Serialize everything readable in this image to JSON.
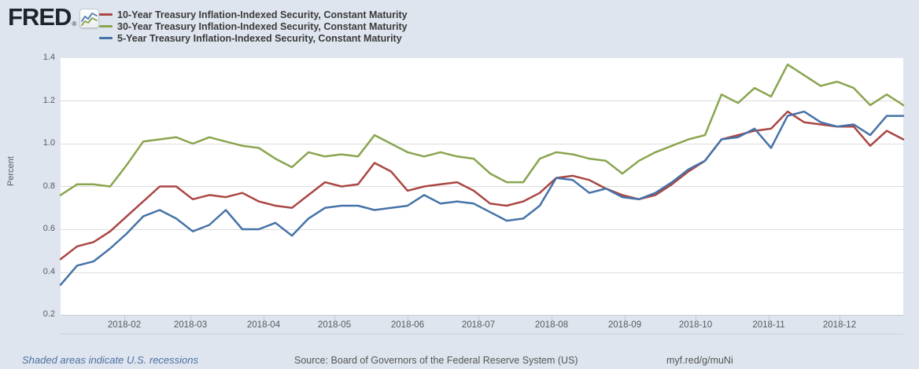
{
  "header": {
    "logo_text": "FRED",
    "logo_registered": "®",
    "logo_icon": "line-chart-icon"
  },
  "legend": {
    "position": "top",
    "series": [
      {
        "label": "10-Year Treasury Inflation-Indexed Security, Constant Maturity",
        "color": "#aa4643"
      },
      {
        "label": "30-Year Treasury Inflation-Indexed Security, Constant Maturity",
        "color": "#89a54e"
      },
      {
        "label": "5-Year Treasury Inflation-Indexed Security, Constant Maturity",
        "color": "#4572a7"
      }
    ]
  },
  "chart_data": {
    "type": "line",
    "title": "",
    "xlabel": "",
    "ylabel": "Percent",
    "ylim": [
      0.2,
      1.4
    ],
    "y_ticks": [
      0.2,
      0.4,
      0.6,
      0.8,
      1.0,
      1.2,
      1.4
    ],
    "grid": "horizontal",
    "x_range": [
      "2018-01-05",
      "2018-12-28"
    ],
    "x_frequency": "weekly",
    "x_ticks": [
      {
        "label": "2018-02",
        "week_offset": 3.857
      },
      {
        "label": "2018-03",
        "week_offset": 7.857
      },
      {
        "label": "2018-04",
        "week_offset": 12.286
      },
      {
        "label": "2018-05",
        "week_offset": 16.571
      },
      {
        "label": "2018-06",
        "week_offset": 21.0
      },
      {
        "label": "2018-07",
        "week_offset": 25.286
      },
      {
        "label": "2018-08",
        "week_offset": 29.714
      },
      {
        "label": "2018-09",
        "week_offset": 34.143
      },
      {
        "label": "2018-10",
        "week_offset": 38.429
      },
      {
        "label": "2018-11",
        "week_offset": 42.857
      },
      {
        "label": "2018-12",
        "week_offset": 47.143
      }
    ],
    "series": [
      {
        "name": "10-Year Treasury Inflation-Indexed Security, Constant Maturity",
        "color": "#aa4643",
        "values": [
          0.46,
          0.52,
          0.54,
          0.59,
          0.66,
          0.73,
          0.8,
          0.8,
          0.74,
          0.76,
          0.75,
          0.77,
          0.73,
          0.71,
          0.7,
          0.76,
          0.82,
          0.8,
          0.81,
          0.91,
          0.87,
          0.78,
          0.8,
          0.81,
          0.82,
          0.78,
          0.72,
          0.71,
          0.73,
          0.77,
          0.84,
          0.85,
          0.83,
          0.79,
          0.76,
          0.74,
          0.76,
          0.81,
          0.87,
          0.92,
          1.02,
          1.04,
          1.06,
          1.07,
          1.15,
          1.1,
          1.09,
          1.08,
          1.08,
          0.99,
          1.06,
          1.02
        ]
      },
      {
        "name": "30-Year Treasury Inflation-Indexed Security, Constant Maturity",
        "color": "#89a54e",
        "values": [
          0.76,
          0.81,
          0.81,
          0.8,
          0.9,
          1.01,
          1.02,
          1.03,
          1.0,
          1.03,
          1.01,
          0.99,
          0.98,
          0.93,
          0.89,
          0.96,
          0.94,
          0.95,
          0.94,
          1.04,
          1.0,
          0.96,
          0.94,
          0.96,
          0.94,
          0.93,
          0.86,
          0.82,
          0.82,
          0.93,
          0.96,
          0.95,
          0.93,
          0.92,
          0.86,
          0.92,
          0.96,
          0.99,
          1.02,
          1.04,
          1.23,
          1.19,
          1.26,
          1.22,
          1.37,
          1.32,
          1.27,
          1.29,
          1.26,
          1.18,
          1.23,
          1.18
        ]
      },
      {
        "name": "5-Year Treasury Inflation-Indexed Security, Constant Maturity",
        "color": "#4572a7",
        "values": [
          0.34,
          0.43,
          0.45,
          0.51,
          0.58,
          0.66,
          0.69,
          0.65,
          0.59,
          0.62,
          0.69,
          0.6,
          0.6,
          0.63,
          0.57,
          0.65,
          0.7,
          0.71,
          0.71,
          0.69,
          0.7,
          0.71,
          0.76,
          0.72,
          0.73,
          0.72,
          0.68,
          0.64,
          0.65,
          0.71,
          0.84,
          0.83,
          0.77,
          0.79,
          0.75,
          0.74,
          0.77,
          0.82,
          0.88,
          0.92,
          1.02,
          1.03,
          1.07,
          0.98,
          1.13,
          1.15,
          1.1,
          1.08,
          1.09,
          1.04,
          1.13,
          1.13
        ]
      }
    ]
  },
  "footer": {
    "recession_note": "Shaded areas indicate U.S. recessions",
    "source": "Source: Board of Governors of the Federal Reserve System (US)",
    "short_url": "myf.red/g/muNi"
  }
}
